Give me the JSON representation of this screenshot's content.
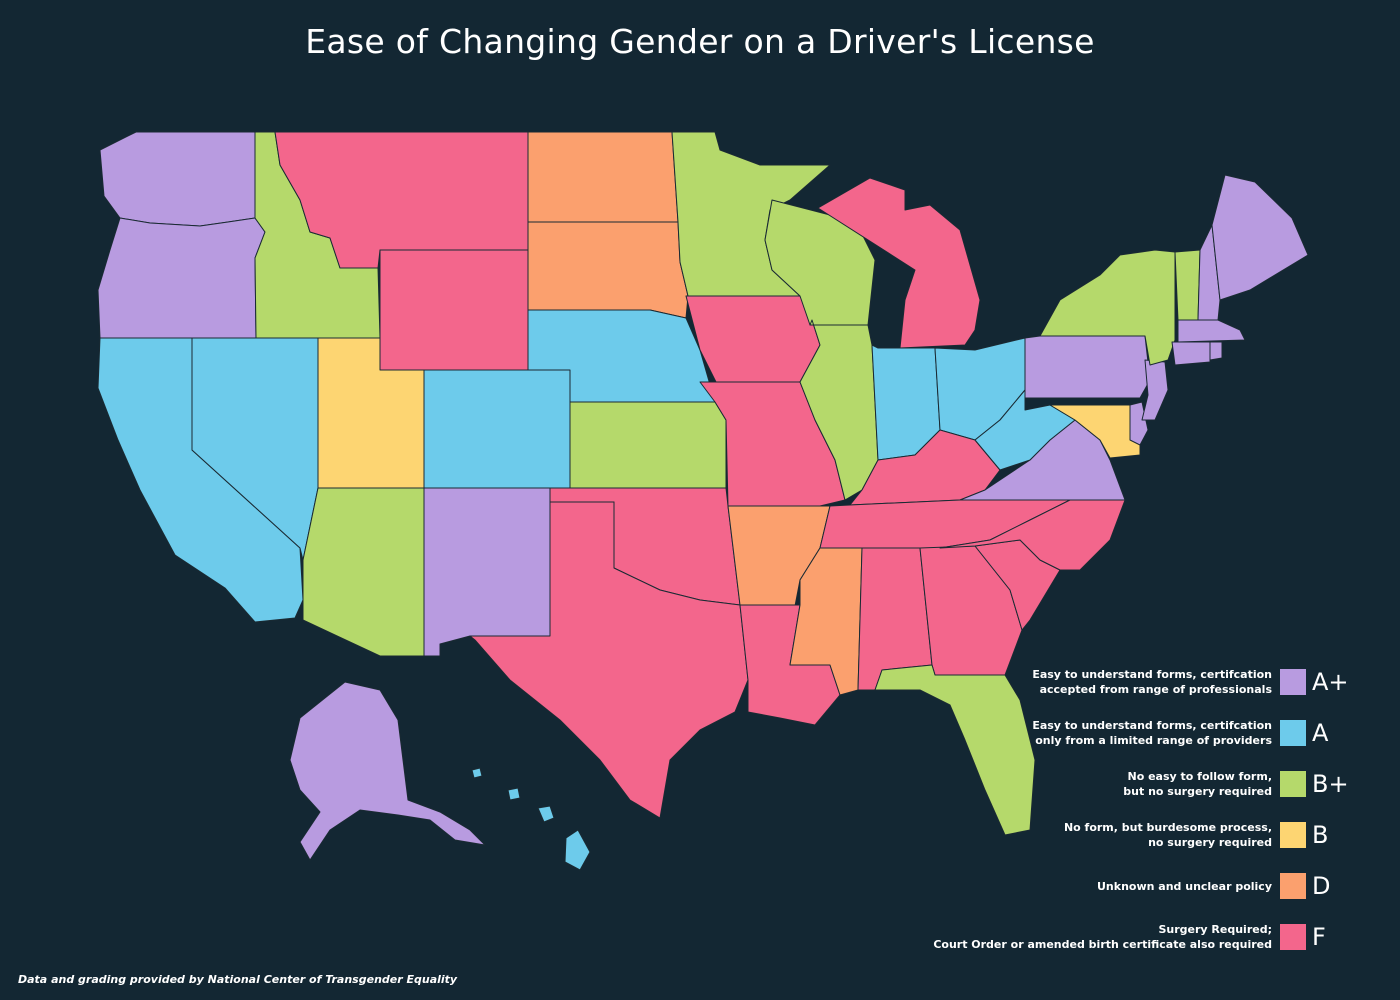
{
  "title": "Ease of Changing Gender on a Driver's License",
  "source": "Data and grading provided by National Center of Transgender Equality",
  "colors": {
    "A+": "#b89be0",
    "A": "#6dcbeb",
    "B+": "#b5d96b",
    "B": "#fdd572",
    "D": "#fba06e",
    "F": "#f3668c",
    "background": "#132733"
  },
  "legend": [
    {
      "grade": "A+",
      "line1": "Easy to understand forms, certifcation",
      "line2": "accepted from range of professionals"
    },
    {
      "grade": "A",
      "line1": "Easy to understand forms, certifcation",
      "line2": "only from a limited range of providers"
    },
    {
      "grade": "B+",
      "line1": "No easy to follow form,",
      "line2": "but no surgery required"
    },
    {
      "grade": "B",
      "line1": "No form, but burdesome process,",
      "line2": "no surgery required"
    },
    {
      "grade": "D",
      "line1": "Unknown and unclear policy",
      "line2": ""
    },
    {
      "grade": "F",
      "line1": "Surgery Required;",
      "line2": "Court Order or amended birth certificate also required"
    }
  ],
  "states": {
    "WA": "A+",
    "OR": "A+",
    "ID": "B+",
    "MT": "F",
    "WY": "F",
    "CA": "A",
    "NV": "A",
    "UT": "B",
    "AZ": "B+",
    "CO": "A",
    "NM": "A+",
    "ND": "D",
    "SD": "D",
    "NE": "A",
    "KS": "B+",
    "OK": "F",
    "TX": "F",
    "MN": "B+",
    "IA": "F",
    "MO": "F",
    "AR": "D",
    "LA": "F",
    "WI": "B+",
    "IL": "B+",
    "MI": "F",
    "IN": "A",
    "OH": "A",
    "KY": "F",
    "TN": "F",
    "MS": "D",
    "AL": "F",
    "GA": "F",
    "FL": "B+",
    "SC": "F",
    "NC": "F",
    "VA": "A+",
    "WV": "A",
    "PA": "A+",
    "NY": "B+",
    "VT": "B+",
    "NH": "A+",
    "ME": "A+",
    "MA": "A+",
    "RI": "A+",
    "CT": "A+",
    "NJ": "A+",
    "DE": "A+",
    "MD": "B",
    "AK": "A+",
    "HI": "A"
  }
}
